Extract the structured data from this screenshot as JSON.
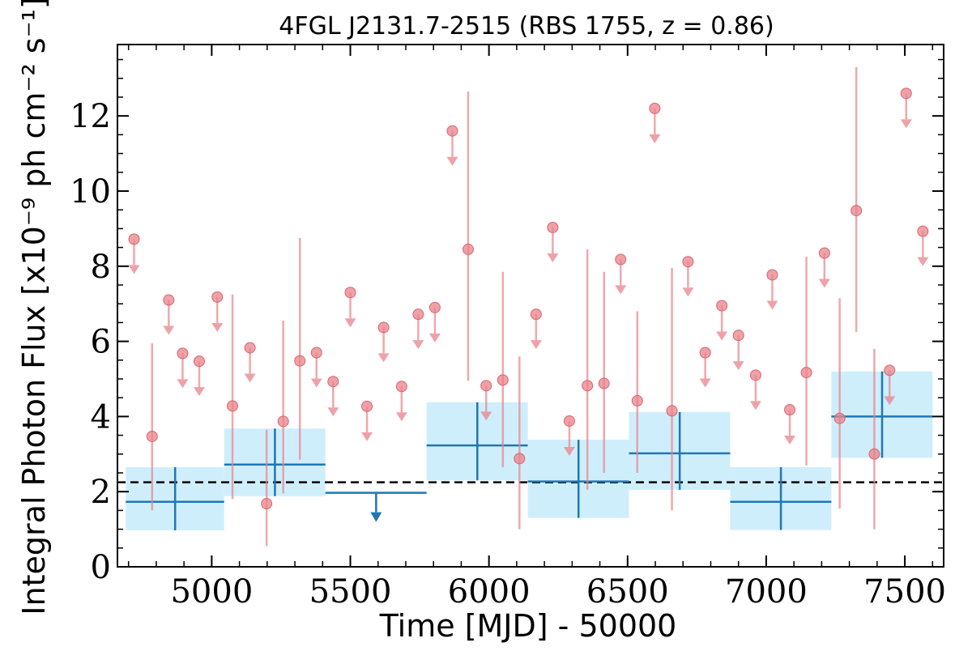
{
  "chart_data": {
    "type": "scatter",
    "title": "4FGL J2131.7-2515 (RBS 1755, z = 0.86)",
    "xlabel": "Time [MJD] - 50000",
    "ylabel": "Integral Photon Flux [x10⁻⁹ ph cm⁻² s⁻¹]",
    "xlim": [
      4660,
      7640
    ],
    "ylim": [
      0,
      13.9
    ],
    "xticks": [
      5000,
      5500,
      6000,
      6500,
      7000,
      7500
    ],
    "yticks": [
      0,
      2,
      4,
      6,
      8,
      10,
      12
    ],
    "grid": false,
    "legend": "none",
    "average_flux": 2.25,
    "colors": {
      "short_bins": "#e8838a",
      "long_bins": "#1f77b4",
      "long_bin_band": "#cfeefc",
      "average_line": "#000000"
    },
    "short_bins": {
      "detections": [
        {
          "x": 4785,
          "y": 3.47,
          "lo": 1.5,
          "hi": 5.95
        },
        {
          "x": 5075,
          "y": 4.28,
          "lo": 1.8,
          "hi": 7.25
        },
        {
          "x": 5198,
          "y": 1.68,
          "lo": 0.55,
          "hi": 3.65
        },
        {
          "x": 5258,
          "y": 3.87,
          "lo": 1.95,
          "hi": 6.55
        },
        {
          "x": 5318,
          "y": 5.48,
          "lo": 2.85,
          "hi": 8.75
        },
        {
          "x": 5925,
          "y": 8.45,
          "lo": 4.95,
          "hi": 12.65
        },
        {
          "x": 6050,
          "y": 4.97,
          "lo": 2.65,
          "hi": 7.85
        },
        {
          "x": 6110,
          "y": 2.88,
          "lo": 1.0,
          "hi": 5.6
        },
        {
          "x": 6355,
          "y": 4.82,
          "lo": 2.05,
          "hi": 8.45
        },
        {
          "x": 6415,
          "y": 4.88,
          "lo": 2.5,
          "hi": 7.85
        },
        {
          "x": 6535,
          "y": 4.42,
          "lo": 2.5,
          "hi": 6.8
        },
        {
          "x": 6660,
          "y": 4.15,
          "lo": 1.5,
          "hi": 7.95
        },
        {
          "x": 7145,
          "y": 5.17,
          "lo": 2.7,
          "hi": 8.25
        },
        {
          "x": 7265,
          "y": 3.95,
          "lo": 1.55,
          "hi": 7.15
        },
        {
          "x": 7325,
          "y": 9.48,
          "lo": 6.25,
          "hi": 13.3
        },
        {
          "x": 7390,
          "y": 3.0,
          "lo": 1.0,
          "hi": 5.8
        }
      ],
      "upper_limits": [
        {
          "x": 4720,
          "y": 8.72
        },
        {
          "x": 4845,
          "y": 7.1
        },
        {
          "x": 4895,
          "y": 5.68
        },
        {
          "x": 4955,
          "y": 5.47
        },
        {
          "x": 5020,
          "y": 7.18
        },
        {
          "x": 5138,
          "y": 5.83
        },
        {
          "x": 5378,
          "y": 5.7
        },
        {
          "x": 5438,
          "y": 4.93
        },
        {
          "x": 5500,
          "y": 7.3
        },
        {
          "x": 5560,
          "y": 4.27
        },
        {
          "x": 5620,
          "y": 6.37
        },
        {
          "x": 5685,
          "y": 4.8
        },
        {
          "x": 5745,
          "y": 6.72
        },
        {
          "x": 5805,
          "y": 6.9
        },
        {
          "x": 5868,
          "y": 11.6
        },
        {
          "x": 5990,
          "y": 4.82
        },
        {
          "x": 6170,
          "y": 6.72
        },
        {
          "x": 6230,
          "y": 9.03
        },
        {
          "x": 6290,
          "y": 3.88
        },
        {
          "x": 6475,
          "y": 8.18
        },
        {
          "x": 6598,
          "y": 12.2
        },
        {
          "x": 6718,
          "y": 8.12
        },
        {
          "x": 6780,
          "y": 5.7
        },
        {
          "x": 6840,
          "y": 6.95
        },
        {
          "x": 6900,
          "y": 6.16
        },
        {
          "x": 6962,
          "y": 5.1
        },
        {
          "x": 7022,
          "y": 7.77
        },
        {
          "x": 7085,
          "y": 4.18
        },
        {
          "x": 7210,
          "y": 8.35
        },
        {
          "x": 7445,
          "y": 5.23
        },
        {
          "x": 7505,
          "y": 12.6
        },
        {
          "x": 7565,
          "y": 8.93
        }
      ]
    },
    "long_bins": {
      "detections": [
        {
          "x0": 4690,
          "x1": 5045,
          "xc": 4868,
          "y": 1.73,
          "lo": 0.97,
          "hi": 2.65
        },
        {
          "x0": 5045,
          "x1": 5410,
          "xc": 5228,
          "y": 2.72,
          "lo": 1.88,
          "hi": 3.68
        },
        {
          "x0": 5775,
          "x1": 6140,
          "xc": 5958,
          "y": 3.23,
          "lo": 2.3,
          "hi": 4.38
        },
        {
          "x0": 6140,
          "x1": 6505,
          "xc": 6323,
          "y": 2.27,
          "lo": 1.3,
          "hi": 3.38
        },
        {
          "x0": 6505,
          "x1": 6870,
          "xc": 6688,
          "y": 3.02,
          "lo": 2.05,
          "hi": 4.12
        },
        {
          "x0": 6870,
          "x1": 7235,
          "xc": 7053,
          "y": 1.73,
          "lo": 0.98,
          "hi": 2.65
        },
        {
          "x0": 7235,
          "x1": 7600,
          "xc": 7418,
          "y": 4.0,
          "lo": 2.9,
          "hi": 5.2
        }
      ],
      "upper_limits": [
        {
          "x0": 5410,
          "x1": 5775,
          "xc": 5593,
          "y": 1.97
        }
      ]
    }
  }
}
